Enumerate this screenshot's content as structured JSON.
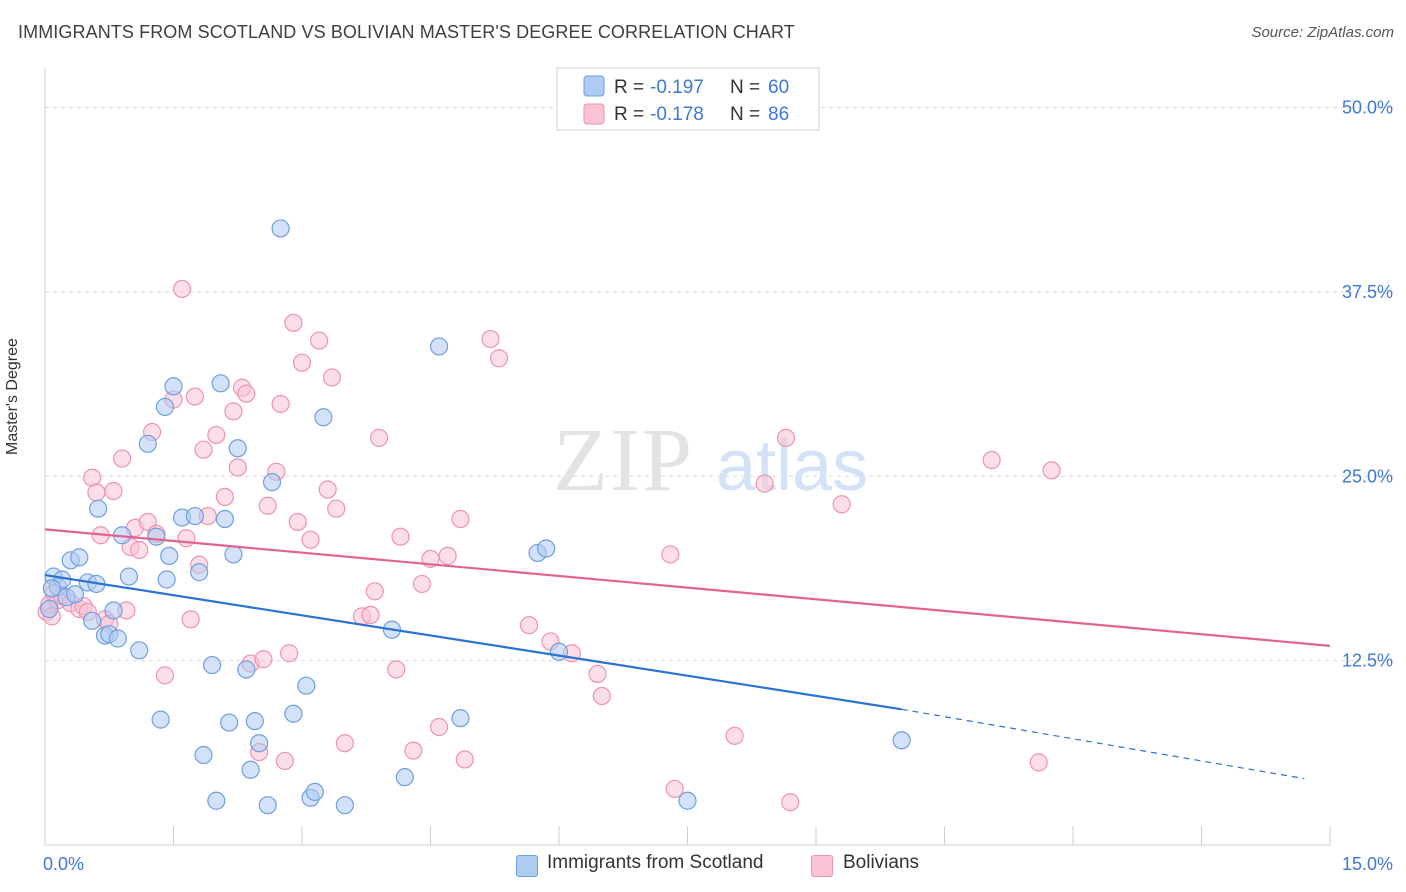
{
  "header": {
    "title": "IMMIGRANTS FROM SCOTLAND VS BOLIVIAN MASTER'S DEGREE CORRELATION CHART",
    "source": "Source: ZipAtlas.com"
  },
  "watermark": {
    "zip": "ZIP",
    "atlas": "atlas"
  },
  "legend_stats": [
    {
      "r_label": "R =",
      "r_value": "-0.197",
      "n_label": "N =",
      "n_value": "60"
    },
    {
      "r_label": "R =",
      "r_value": "-0.178",
      "n_label": "N =",
      "n_value": "86"
    }
  ],
  "bottom_legend": {
    "scotland": "Immigrants from Scotland",
    "bolivians": "Bolivians"
  },
  "colors": {
    "scotland_fill": "#aecbf2",
    "scotland_stroke": "#6f9fe0",
    "scotland_line": "#2a72d4",
    "bolivian_fill": "#f9c3d3",
    "bolivian_stroke": "#ee93b0",
    "bolivian_line": "#e0648f",
    "tick_label": "#3d78d8",
    "grid": "#d9d9d9"
  },
  "chart_data": {
    "type": "scatter",
    "title": "IMMIGRANTS FROM SCOTLAND VS BOLIVIAN MASTER'S DEGREE CORRELATION CHART",
    "xlabel": "",
    "ylabel": "Master's Degree",
    "xlim": [
      0,
      15
    ],
    "ylim": [
      0,
      52
    ],
    "x_tick_labels": [
      "0.0%",
      "15.0%"
    ],
    "y_ticks": [
      12.5,
      25.0,
      37.5,
      50.0
    ],
    "y_tick_labels": [
      "12.5%",
      "25.0%",
      "37.5%",
      "50.0%"
    ],
    "grid": true,
    "legend_position": "top-center",
    "series": [
      {
        "name": "Immigrants from Scotland",
        "r": -0.197,
        "n": 60,
        "trend": {
          "x": [
            0.0,
            10.0
          ],
          "y": [
            18.3,
            9.2
          ],
          "dashed_extension": {
            "x": [
              10.0,
              14.7
            ],
            "y": [
              9.2,
              4.5
            ]
          }
        },
        "points": [
          [
            0.05,
            16.0
          ],
          [
            0.1,
            18.2
          ],
          [
            0.15,
            17.5
          ],
          [
            0.2,
            18.0
          ],
          [
            0.25,
            16.8
          ],
          [
            0.3,
            19.3
          ],
          [
            0.4,
            19.5
          ],
          [
            0.5,
            17.8
          ],
          [
            0.55,
            15.2
          ],
          [
            0.6,
            17.7
          ],
          [
            0.62,
            22.8
          ],
          [
            0.7,
            14.2
          ],
          [
            0.75,
            14.3
          ],
          [
            0.8,
            15.9
          ],
          [
            0.85,
            14.0
          ],
          [
            0.9,
            21.0
          ],
          [
            0.98,
            18.2
          ],
          [
            1.1,
            13.2
          ],
          [
            1.2,
            27.2
          ],
          [
            1.3,
            20.9
          ],
          [
            1.35,
            8.5
          ],
          [
            1.4,
            29.7
          ],
          [
            1.42,
            18.0
          ],
          [
            1.45,
            19.6
          ],
          [
            1.5,
            31.1
          ],
          [
            1.6,
            22.2
          ],
          [
            1.75,
            22.3
          ],
          [
            1.8,
            18.5
          ],
          [
            1.85,
            6.1
          ],
          [
            1.95,
            12.2
          ],
          [
            2.0,
            3.0
          ],
          [
            2.05,
            31.3
          ],
          [
            2.1,
            22.1
          ],
          [
            2.15,
            8.3
          ],
          [
            2.2,
            19.7
          ],
          [
            2.25,
            26.9
          ],
          [
            2.35,
            11.9
          ],
          [
            2.4,
            5.1
          ],
          [
            2.45,
            8.4
          ],
          [
            2.5,
            6.9
          ],
          [
            2.6,
            2.7
          ],
          [
            2.65,
            24.6
          ],
          [
            2.75,
            41.8
          ],
          [
            2.9,
            8.9
          ],
          [
            3.05,
            10.8
          ],
          [
            3.1,
            3.2
          ],
          [
            3.15,
            3.6
          ],
          [
            3.25,
            29.0
          ],
          [
            3.5,
            2.7
          ],
          [
            4.05,
            14.6
          ],
          [
            4.2,
            4.6
          ],
          [
            4.6,
            33.8
          ],
          [
            4.85,
            8.6
          ],
          [
            5.75,
            19.8
          ],
          [
            5.85,
            20.1
          ],
          [
            6.0,
            13.1
          ],
          [
            7.5,
            3.0
          ],
          [
            10.0,
            7.1
          ],
          [
            0.08,
            17.4
          ],
          [
            0.35,
            17.0
          ]
        ]
      },
      {
        "name": "Bolivians",
        "r": -0.178,
        "n": 86,
        "trend": {
          "x": [
            0.0,
            15.0
          ],
          "y": [
            21.4,
            13.5
          ]
        },
        "points": [
          [
            0.02,
            15.8
          ],
          [
            0.05,
            16.3
          ],
          [
            0.08,
            15.5
          ],
          [
            0.1,
            17.1
          ],
          [
            0.15,
            16.6
          ],
          [
            0.2,
            16.9
          ],
          [
            0.3,
            16.4
          ],
          [
            0.4,
            16.0
          ],
          [
            0.45,
            16.2
          ],
          [
            0.5,
            15.8
          ],
          [
            0.55,
            24.9
          ],
          [
            0.6,
            23.9
          ],
          [
            0.65,
            21.0
          ],
          [
            0.7,
            15.3
          ],
          [
            0.75,
            15.0
          ],
          [
            0.8,
            24.0
          ],
          [
            0.9,
            26.2
          ],
          [
            0.95,
            15.9
          ],
          [
            1.0,
            20.2
          ],
          [
            1.05,
            21.5
          ],
          [
            1.1,
            20.0
          ],
          [
            1.2,
            21.9
          ],
          [
            1.25,
            28.0
          ],
          [
            1.3,
            21.1
          ],
          [
            1.4,
            11.5
          ],
          [
            1.5,
            30.2
          ],
          [
            1.6,
            37.7
          ],
          [
            1.65,
            20.8
          ],
          [
            1.7,
            15.3
          ],
          [
            1.75,
            30.4
          ],
          [
            1.8,
            19.0
          ],
          [
            1.85,
            26.8
          ],
          [
            1.9,
            22.3
          ],
          [
            2.0,
            27.8
          ],
          [
            2.1,
            23.6
          ],
          [
            2.2,
            29.4
          ],
          [
            2.25,
            25.6
          ],
          [
            2.3,
            31.0
          ],
          [
            2.35,
            30.6
          ],
          [
            2.4,
            12.3
          ],
          [
            2.5,
            6.3
          ],
          [
            2.55,
            12.6
          ],
          [
            2.6,
            23.0
          ],
          [
            2.7,
            25.3
          ],
          [
            2.75,
            29.9
          ],
          [
            2.8,
            5.7
          ],
          [
            2.85,
            13.0
          ],
          [
            2.9,
            35.4
          ],
          [
            2.95,
            21.9
          ],
          [
            3.0,
            32.7
          ],
          [
            3.1,
            20.7
          ],
          [
            3.2,
            34.2
          ],
          [
            3.3,
            24.1
          ],
          [
            3.35,
            31.7
          ],
          [
            3.4,
            22.8
          ],
          [
            3.5,
            6.9
          ],
          [
            3.7,
            15.5
          ],
          [
            3.8,
            15.6
          ],
          [
            3.85,
            17.2
          ],
          [
            3.9,
            27.6
          ],
          [
            4.1,
            11.9
          ],
          [
            4.15,
            20.9
          ],
          [
            4.3,
            6.4
          ],
          [
            4.4,
            17.7
          ],
          [
            4.5,
            19.4
          ],
          [
            4.6,
            8.0
          ],
          [
            4.7,
            19.6
          ],
          [
            4.85,
            22.1
          ],
          [
            4.9,
            5.8
          ],
          [
            5.2,
            34.3
          ],
          [
            5.3,
            33.0
          ],
          [
            5.65,
            14.9
          ],
          [
            5.9,
            13.8
          ],
          [
            6.15,
            13.0
          ],
          [
            6.45,
            11.6
          ],
          [
            6.5,
            10.1
          ],
          [
            7.3,
            19.7
          ],
          [
            7.35,
            3.8
          ],
          [
            8.05,
            7.4
          ],
          [
            8.4,
            24.5
          ],
          [
            8.65,
            27.6
          ],
          [
            8.7,
            2.9
          ],
          [
            9.3,
            23.1
          ],
          [
            11.05,
            26.1
          ],
          [
            11.75,
            25.4
          ],
          [
            11.6,
            5.6
          ]
        ]
      }
    ]
  }
}
